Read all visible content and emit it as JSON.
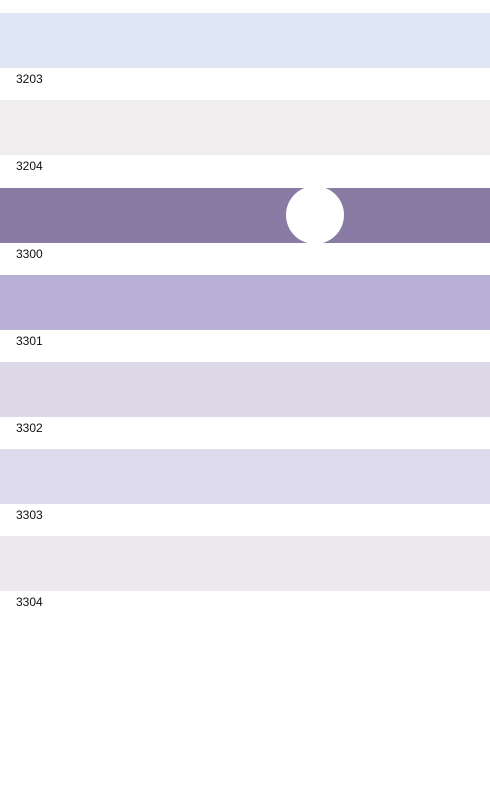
{
  "swatches": [
    {
      "code": "3203",
      "color": "#e0e7f4"
    },
    {
      "code": "3204",
      "color": "#efedee"
    },
    {
      "code": "3300",
      "color": "#897ca4",
      "selected": true
    },
    {
      "code": "3301",
      "color": "#b9b1d5"
    },
    {
      "code": "3302",
      "color": "#dcd8e8"
    },
    {
      "code": "3303",
      "color": "#dedcec"
    },
    {
      "code": "3304",
      "color": "#ede8ec"
    }
  ]
}
